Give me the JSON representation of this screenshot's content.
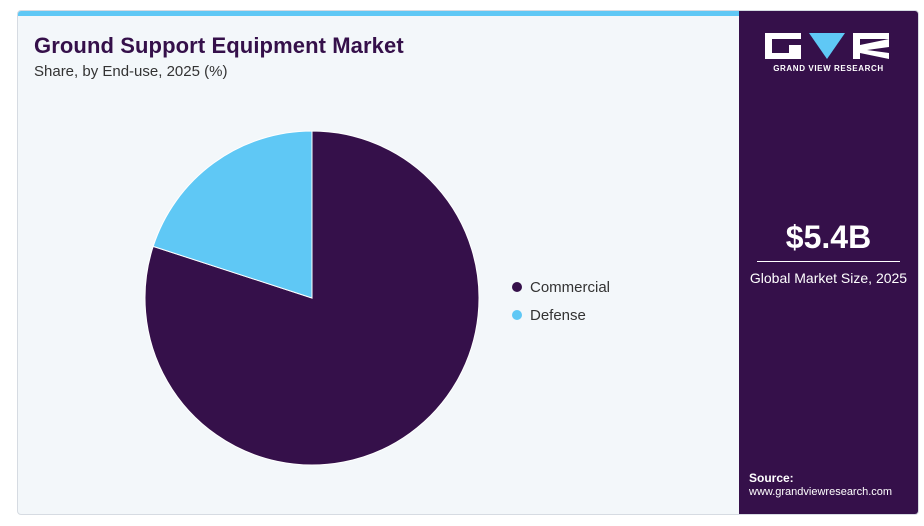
{
  "title": "Ground Support Equipment Market",
  "subtitle": "Share, by End-use, 2025 (%)",
  "colors": {
    "commercial": "#35104a",
    "defense": "#5fc8f5",
    "accent": "#5fc8f5",
    "panel": "#35104a"
  },
  "chart_data": {
    "type": "pie",
    "title": "Ground Support Equipment Market",
    "subtitle": "Share, by End-use, 2025 (%)",
    "categories": [
      "Commercial",
      "Defense"
    ],
    "values": [
      80,
      20
    ],
    "colors": [
      "#35104a",
      "#5fc8f5"
    ],
    "legend_position": "right",
    "start_angle_deg": 0,
    "direction": "clockwise"
  },
  "legend": [
    {
      "label": "Commercial",
      "color": "#35104a"
    },
    {
      "label": "Defense",
      "color": "#5fc8f5"
    }
  ],
  "sidebar": {
    "brand": "GRAND VIEW RESEARCH",
    "market_size_value": "$5.4B",
    "market_size_label": "Global Market Size, 2025",
    "source_label": "Source:",
    "source_url": "www.grandviewresearch.com"
  }
}
